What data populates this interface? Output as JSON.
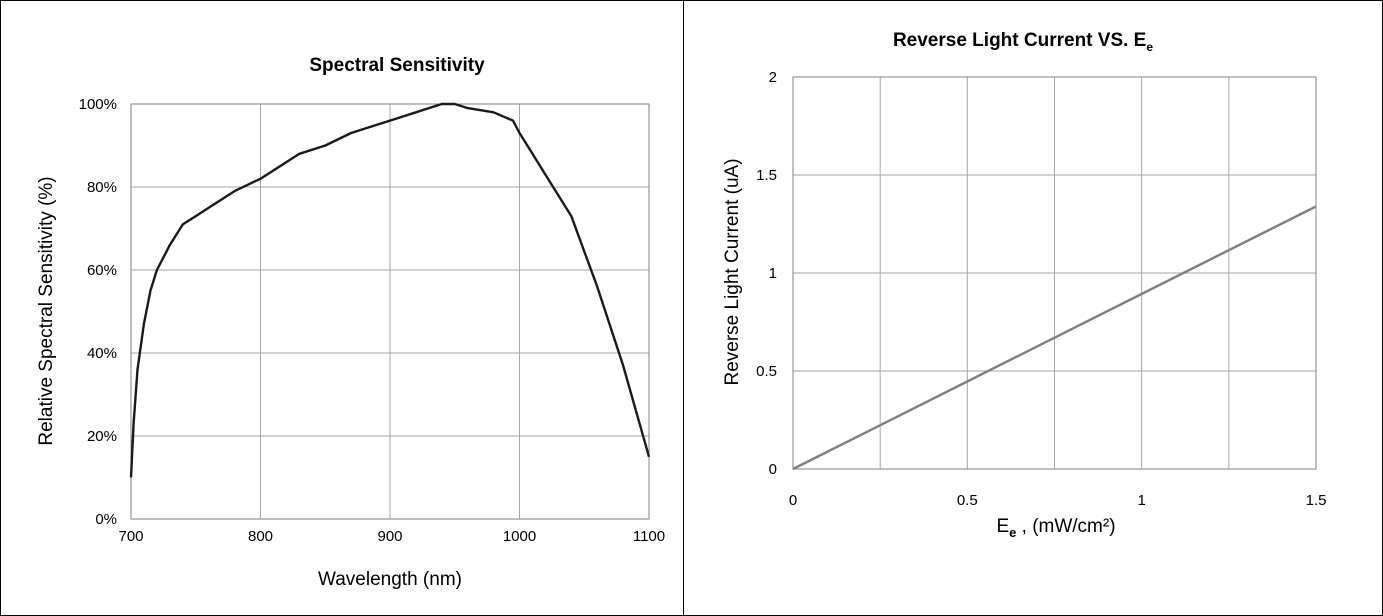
{
  "chart_data": [
    {
      "type": "line",
      "title": "Spectral Sensitivity",
      "xlabel": "Wavelength (nm)",
      "ylabel": "Relative Spectral Sensitivity (%)",
      "xlim": [
        700,
        1100
      ],
      "ylim": [
        0,
        100
      ],
      "xticks": [
        "700",
        "800",
        "900",
        "1000",
        "1100"
      ],
      "yticks": [
        "0%",
        "20%",
        "40%",
        "60%",
        "80%",
        "100%"
      ],
      "grid": true,
      "line_color": "#1a1a1a",
      "series": [
        {
          "x": [
            700,
            702,
            705,
            710,
            715,
            720,
            730,
            740,
            750,
            760,
            780,
            800,
            820,
            830,
            850,
            870,
            900,
            920,
            940,
            950,
            960,
            980,
            995,
            1000,
            1010,
            1020,
            1040,
            1060,
            1080,
            1100
          ],
          "y": [
            10,
            23,
            36,
            47,
            55,
            60,
            66,
            71,
            73,
            75,
            79,
            82,
            86,
            88,
            90,
            93,
            96,
            98,
            100,
            100,
            99,
            98,
            96,
            93,
            88,
            83,
            73,
            56,
            37,
            15
          ]
        }
      ]
    },
    {
      "type": "line",
      "title": "Reverse Light Current VS. E",
      "title_sub": "e",
      "xlabel": "E",
      "xlabel_sub": "e",
      "xlabel_tail": " , (mW/cm²)",
      "ylabel": "Reverse Light Current (uA)",
      "xlim": [
        0,
        1.5
      ],
      "ylim": [
        0,
        2
      ],
      "xticks": [
        "0",
        "0.5",
        "1",
        "1.5"
      ],
      "yticks": [
        "0",
        "0.5",
        "1",
        "1.5",
        "2"
      ],
      "grid": true,
      "line_color": "#7f7f7f",
      "series": [
        {
          "x": [
            0,
            1.5
          ],
          "y": [
            0,
            1.34
          ]
        }
      ]
    }
  ]
}
